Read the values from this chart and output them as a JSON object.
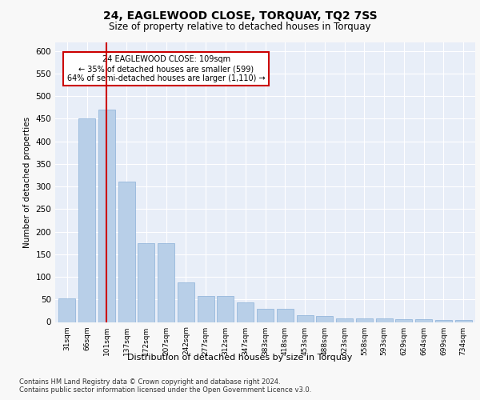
{
  "title": "24, EAGLEWOOD CLOSE, TORQUAY, TQ2 7SS",
  "subtitle": "Size of property relative to detached houses in Torquay",
  "xlabel": "Distribution of detached houses by size in Torquay",
  "ylabel": "Number of detached properties",
  "categories": [
    "31sqm",
    "66sqm",
    "101sqm",
    "137sqm",
    "172sqm",
    "207sqm",
    "242sqm",
    "277sqm",
    "312sqm",
    "347sqm",
    "383sqm",
    "418sqm",
    "453sqm",
    "488sqm",
    "523sqm",
    "558sqm",
    "593sqm",
    "629sqm",
    "664sqm",
    "699sqm",
    "734sqm"
  ],
  "values": [
    52,
    450,
    470,
    310,
    175,
    175,
    88,
    58,
    58,
    43,
    30,
    30,
    15,
    13,
    8,
    8,
    8,
    6,
    6,
    4,
    4
  ],
  "bar_color": "#b8cfe8",
  "bar_edge_color": "#8ab0d8",
  "highlight_line_color": "#cc0000",
  "highlight_line_index": 2,
  "annotation_text": "24 EAGLEWOOD CLOSE: 109sqm\n← 35% of detached houses are smaller (599)\n64% of semi-detached houses are larger (1,110) →",
  "annotation_box_color": "#ffffff",
  "annotation_box_edge": "#cc0000",
  "ylim": [
    0,
    620
  ],
  "yticks": [
    0,
    50,
    100,
    150,
    200,
    250,
    300,
    350,
    400,
    450,
    500,
    550,
    600
  ],
  "footer1": "Contains HM Land Registry data © Crown copyright and database right 2024.",
  "footer2": "Contains public sector information licensed under the Open Government Licence v3.0.",
  "bg_color": "#f8f8f8",
  "plot_bg_color": "#e8eef8"
}
